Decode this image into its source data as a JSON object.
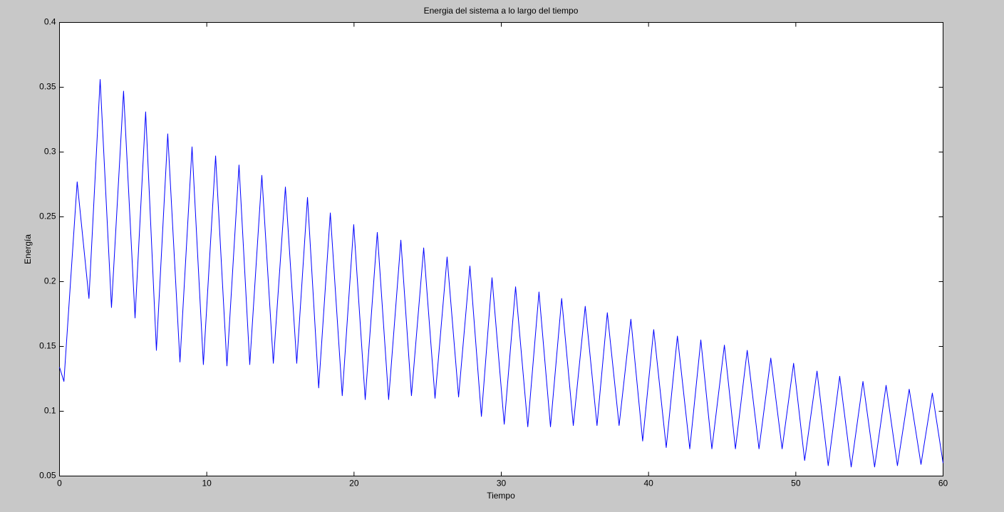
{
  "chart_data": {
    "type": "line",
    "title": "Energia del sistema a lo largo del tiempo",
    "x_label": "Tiempo",
    "y_label": "Energía",
    "xlim": [
      0,
      60
    ],
    "ylim": [
      0.05,
      0.4
    ],
    "xticks": [
      0,
      10,
      20,
      30,
      40,
      50,
      60
    ],
    "yticks": [
      0.05,
      0.1,
      0.15,
      0.2,
      0.25,
      0.3,
      0.35,
      0.4
    ],
    "grid": false,
    "series": [
      {
        "color": "#0000ff",
        "x": [
          0,
          0.3,
          1.2,
          2.0,
          2.76,
          3.53,
          4.35,
          5.13,
          5.85,
          6.58,
          7.35,
          8.18,
          9.0,
          9.77,
          10.6,
          11.37,
          12.19,
          12.92,
          13.74,
          14.52,
          15.34,
          16.11,
          16.84,
          17.6,
          18.39,
          19.2,
          19.98,
          20.76,
          21.58,
          22.35,
          23.18,
          23.9,
          24.73,
          25.5,
          26.32,
          27.1,
          27.87,
          28.65,
          29.37,
          30.2,
          30.97,
          31.8,
          32.56,
          33.34,
          34.1,
          34.89,
          35.7,
          36.5,
          37.2,
          38.0,
          38.8,
          39.6,
          40.35,
          41.2,
          41.96,
          42.8,
          43.55,
          44.3,
          45.15,
          45.9,
          46.7,
          47.5,
          48.3,
          49.07,
          49.85,
          50.6,
          51.44,
          52.2,
          52.98,
          53.76,
          54.56,
          55.35,
          56.13,
          56.9,
          57.7,
          58.5,
          59.27,
          60
        ],
        "values": [
          0.134,
          0.123,
          0.277,
          0.187,
          0.356,
          0.18,
          0.347,
          0.172,
          0.331,
          0.147,
          0.314,
          0.138,
          0.304,
          0.136,
          0.297,
          0.135,
          0.29,
          0.136,
          0.282,
          0.137,
          0.273,
          0.137,
          0.265,
          0.118,
          0.253,
          0.112,
          0.244,
          0.109,
          0.238,
          0.109,
          0.232,
          0.112,
          0.226,
          0.11,
          0.219,
          0.111,
          0.212,
          0.096,
          0.203,
          0.09,
          0.196,
          0.088,
          0.192,
          0.088,
          0.187,
          0.089,
          0.181,
          0.089,
          0.176,
          0.089,
          0.171,
          0.077,
          0.163,
          0.072,
          0.158,
          0.071,
          0.155,
          0.071,
          0.151,
          0.071,
          0.147,
          0.071,
          0.141,
          0.071,
          0.137,
          0.062,
          0.131,
          0.058,
          0.127,
          0.057,
          0.123,
          0.057,
          0.12,
          0.058,
          0.117,
          0.059,
          0.114,
          0.06
        ]
      }
    ]
  }
}
